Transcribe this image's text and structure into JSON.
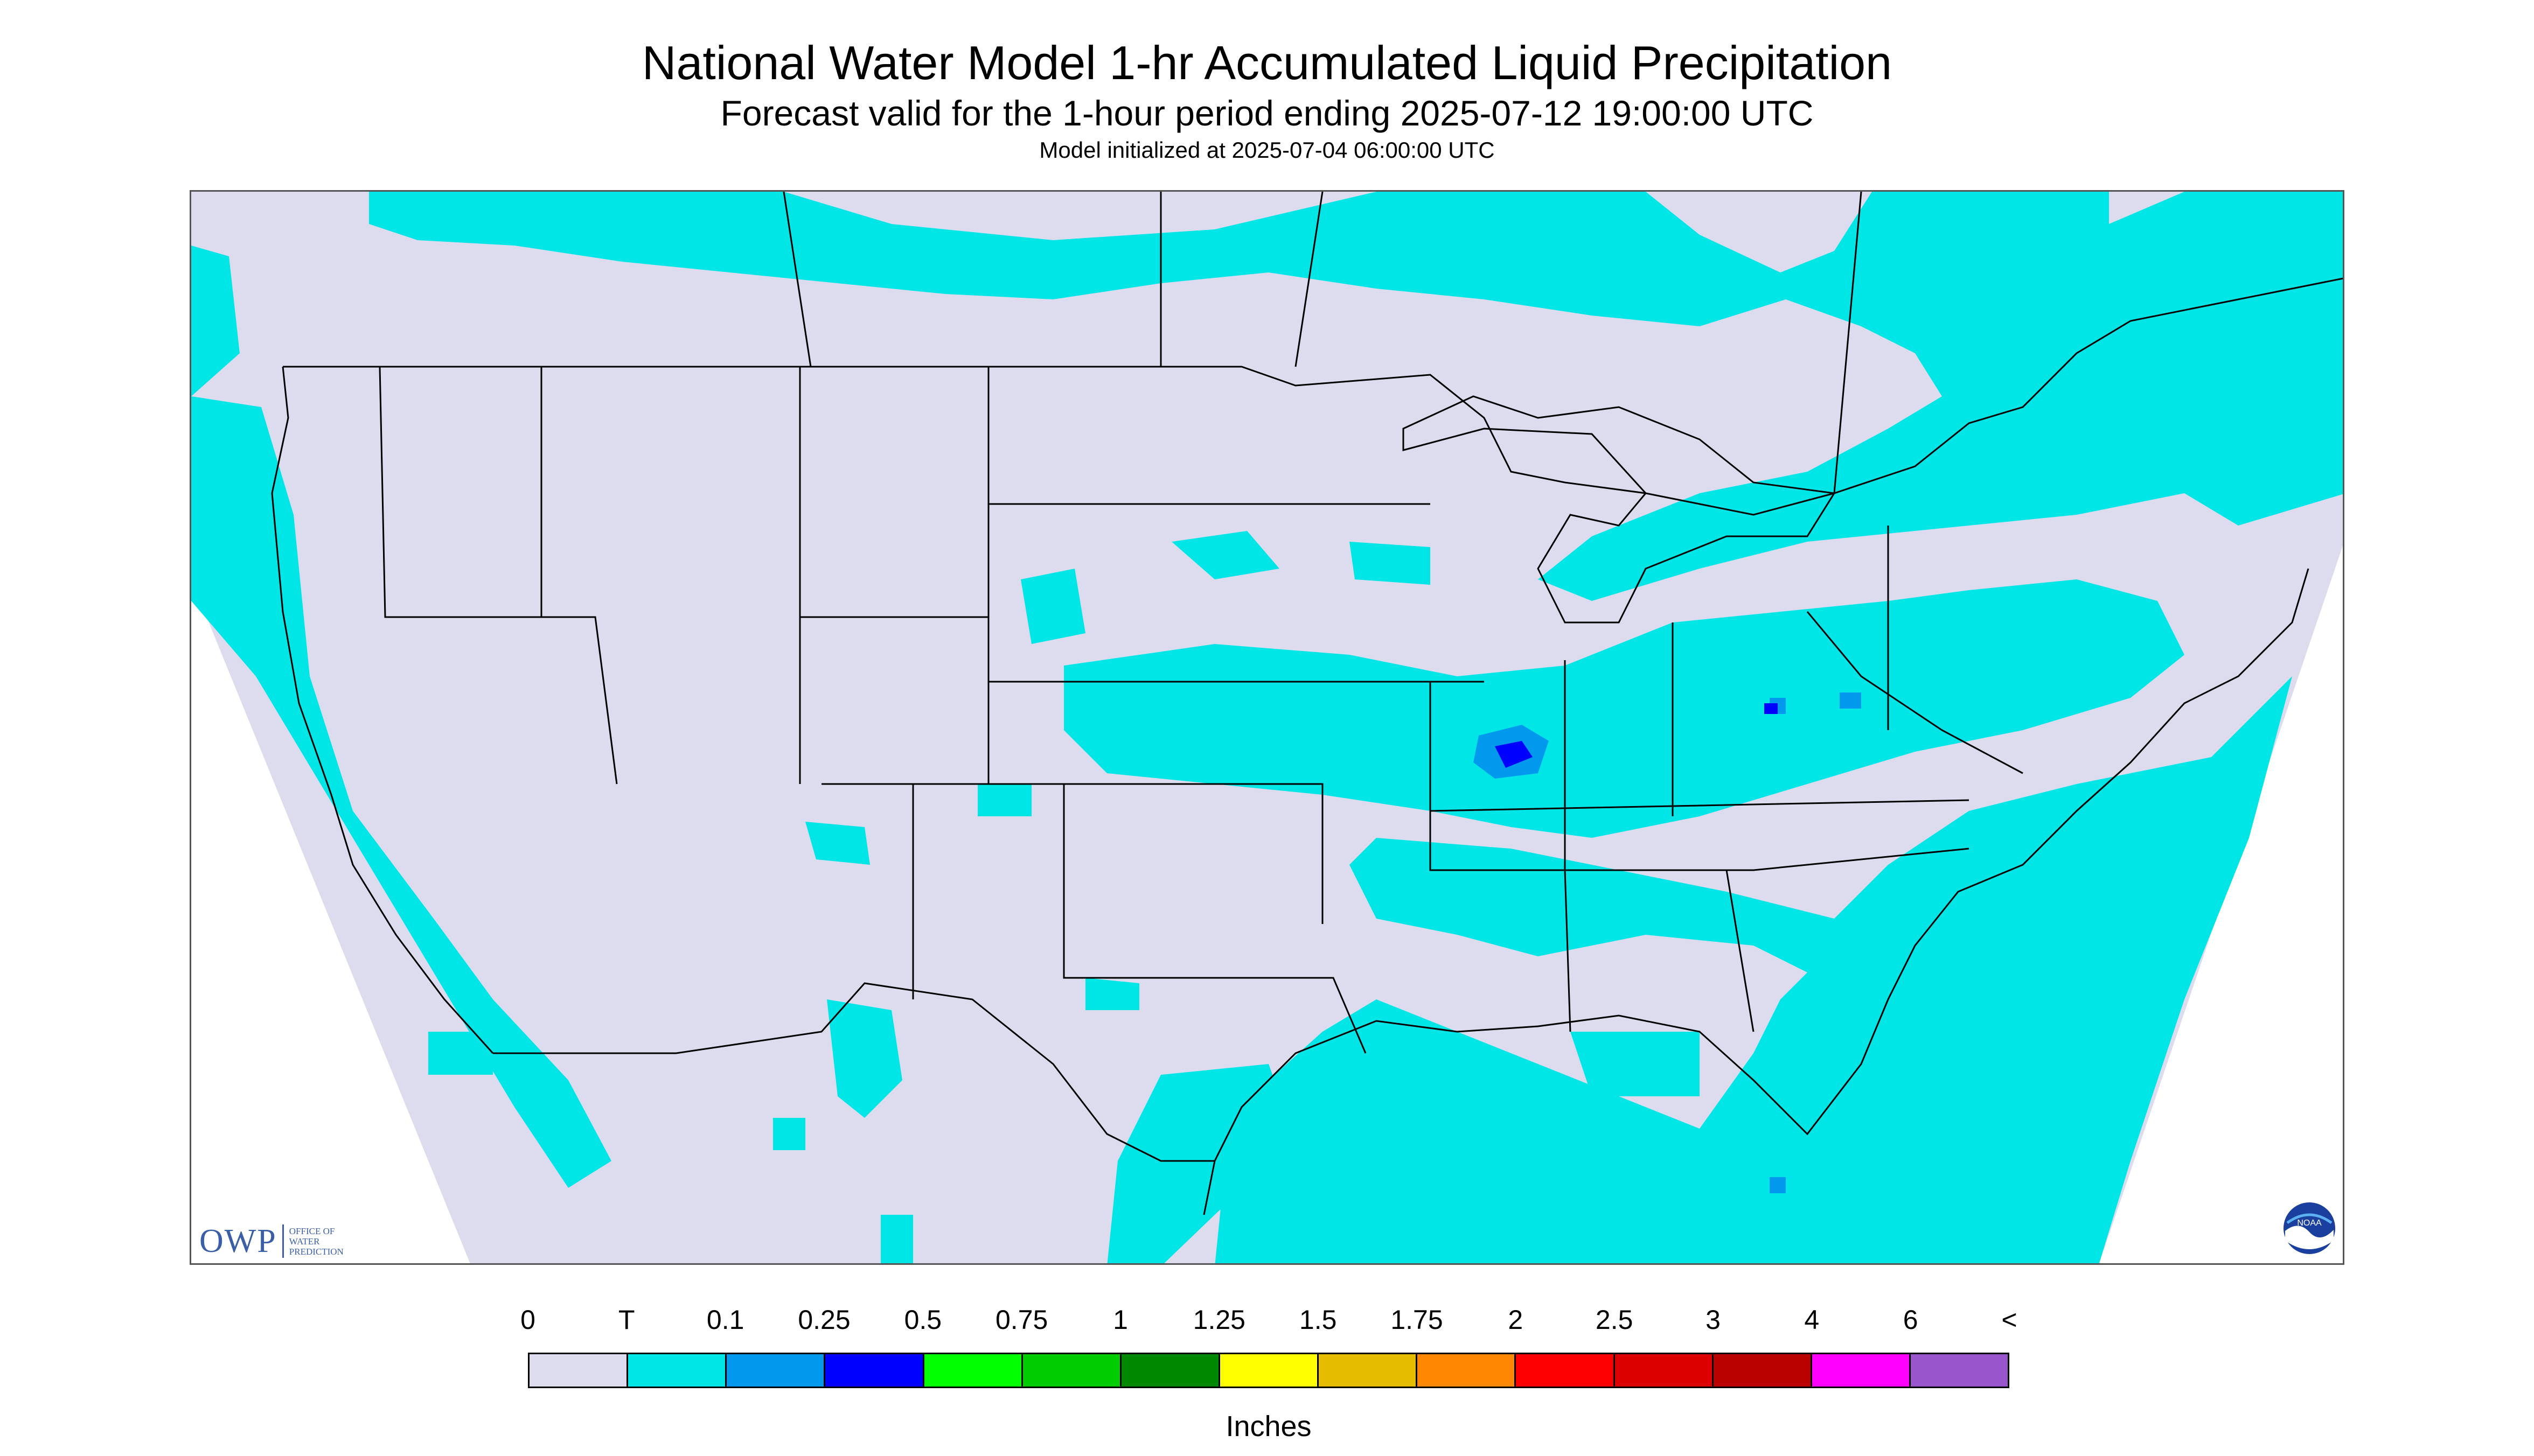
{
  "title": "National Water Model 1-hr Accumulated Liquid Precipitation",
  "subtitle": "Forecast valid for the 1-hour period ending 2025-07-12 19:00:00 UTC",
  "init_line": "Model initialized at 2025-07-04 06:00:00 UTC",
  "logo": {
    "owp_mark": "OWP",
    "owp_sub": "OFFICE OF\nWATER\nPREDICTION",
    "noaa_text": "NOAA",
    "noaa_icon": "noaa-seal-icon"
  },
  "legend": {
    "units": "Inches",
    "tick_labels": [
      "0",
      "T",
      "0.1",
      "0.25",
      "0.5",
      "0.75",
      "1",
      "1.25",
      "1.5",
      "1.75",
      "2",
      "2.5",
      "3",
      "4",
      "6",
      "<"
    ],
    "bins": [
      {
        "color": "#dcdcee"
      },
      {
        "color": "#00e6e6"
      },
      {
        "color": "#0099ee"
      },
      {
        "color": "#0000ff"
      },
      {
        "color": "#00ff00"
      },
      {
        "color": "#00cc00"
      },
      {
        "color": "#008800"
      },
      {
        "color": "#ffff00"
      },
      {
        "color": "#e6bc00"
      },
      {
        "color": "#ff8800"
      },
      {
        "color": "#ff0000"
      },
      {
        "color": "#dd0000"
      },
      {
        "color": "#bb0000"
      },
      {
        "color": "#ff00ff"
      },
      {
        "color": "#9955cc"
      }
    ]
  },
  "map": {
    "background_color": "#dcdcee",
    "precip_colors": {
      "trace": "#00e6e6",
      "light": "#0099ee",
      "moderate": "#0000ff"
    },
    "boundary_color": "#000000"
  }
}
